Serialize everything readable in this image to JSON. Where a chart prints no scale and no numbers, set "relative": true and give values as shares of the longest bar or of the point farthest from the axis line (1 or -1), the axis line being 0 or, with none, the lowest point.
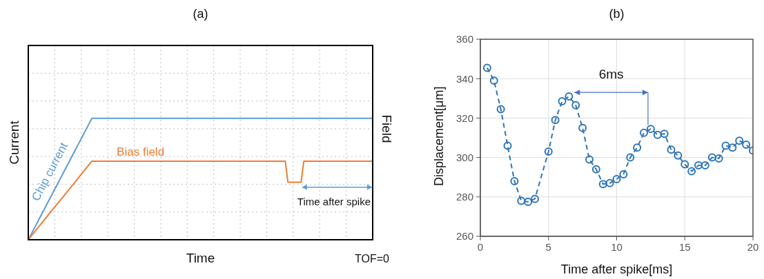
{
  "chart_data": [
    {
      "type": "line",
      "title": "(a)",
      "xlabel": "Time",
      "ylabel": "Current",
      "y2label": "Field",
      "relative": true,
      "grid": true,
      "categories": [
        null,
        null,
        null,
        null,
        null,
        null,
        null,
        null,
        null,
        null,
        null,
        null,
        null,
        null,
        null,
        null,
        null,
        null,
        null,
        null,
        null,
        null,
        null,
        null,
        null,
        null,
        null,
        null,
        null,
        null,
        null,
        null,
        null,
        null,
        null,
        null,
        null,
        null,
        null,
        null,
        null,
        null,
        null,
        null,
        null,
        null,
        null,
        null,
        null,
        null,
        null,
        null,
        null,
        null,
        null,
        null,
        null,
        null,
        null,
        null,
        null,
        null,
        null,
        null,
        null,
        null,
        null,
        null,
        null,
        null,
        null,
        null,
        null,
        null,
        null,
        null,
        null,
        null,
        null,
        null,
        null,
        null,
        null,
        null,
        null,
        null,
        null,
        null,
        null,
        null,
        null,
        null,
        null,
        null,
        null,
        null,
        null,
        null,
        null,
        null,
        null,
        null,
        null,
        null,
        null,
        null,
        null,
        null,
        null,
        null,
        null,
        null,
        null,
        null,
        null,
        null,
        null,
        null,
        null,
        null,
        null,
        null,
        null,
        null,
        null,
        null,
        null,
        null,
        null,
        null,
        null
      ],
      "series": [
        {
          "name": "Chip current",
          "color": "#5b9bd5",
          "values": [
            0,
            0.042,
            0.083,
            0.125,
            0.167,
            0.208,
            0.25,
            0.292,
            0.333,
            0.375,
            0.417,
            0.458,
            0.5,
            0.542,
            0.583,
            0.625,
            0.667,
            0.708,
            0.75,
            0.792,
            0.833,
            0.875,
            0.917,
            0.958,
            1,
            1,
            1,
            1,
            1,
            1,
            1,
            1,
            1,
            1,
            1,
            1,
            1,
            1,
            1,
            1,
            1,
            1,
            1,
            1,
            1,
            1,
            1,
            1,
            1,
            1,
            1,
            1,
            1,
            1,
            1,
            1,
            1,
            1,
            1,
            1,
            1,
            1,
            1,
            1,
            1,
            1,
            1,
            1,
            1,
            1,
            1,
            1,
            1,
            1,
            1,
            1,
            1,
            1,
            1,
            1,
            1,
            1,
            1,
            1,
            1,
            1,
            1,
            1,
            1,
            1,
            1,
            1,
            1,
            1,
            1,
            1,
            1,
            1,
            1,
            1,
            1,
            1,
            1,
            1,
            1,
            1,
            1,
            1,
            1,
            1,
            1,
            1,
            1,
            1,
            1,
            1,
            1,
            1,
            1,
            1,
            1,
            1,
            1,
            1,
            1,
            1,
            1,
            1,
            1,
            1,
            1
          ]
        },
        {
          "name": "Bias field",
          "color": "#ed7d31",
          "values": [
            0,
            0.027,
            0.054,
            0.081,
            0.108,
            0.135,
            0.162,
            0.189,
            0.216,
            0.243,
            0.27,
            0.297,
            0.324,
            0.35,
            0.377,
            0.404,
            0.431,
            0.458,
            0.485,
            0.512,
            0.539,
            0.566,
            0.593,
            0.62,
            0.647,
            0.647,
            0.647,
            0.647,
            0.647,
            0.647,
            0.647,
            0.647,
            0.647,
            0.647,
            0.647,
            0.647,
            0.647,
            0.647,
            0.647,
            0.647,
            0.647,
            0.647,
            0.647,
            0.647,
            0.647,
            0.647,
            0.647,
            0.647,
            0.647,
            0.647,
            0.647,
            0.647,
            0.647,
            0.647,
            0.647,
            0.647,
            0.647,
            0.647,
            0.647,
            0.647,
            0.647,
            0.647,
            0.647,
            0.647,
            0.647,
            0.647,
            0.647,
            0.647,
            0.647,
            0.647,
            0.647,
            0.647,
            0.647,
            0.647,
            0.647,
            0.647,
            0.647,
            0.647,
            0.647,
            0.647,
            0.647,
            0.647,
            0.647,
            0.647,
            0.647,
            0.647,
            0.647,
            0.647,
            0.647,
            0.647,
            0.647,
            0.647,
            0.647,
            0.647,
            0.647,
            0.647,
            0.647,
            0.647,
            0.474,
            0.474,
            0.474,
            0.474,
            0.474,
            0.474,
            0.647,
            0.647,
            0.647,
            0.647,
            0.647,
            0.647,
            0.647,
            0.647,
            0.647,
            0.647,
            0.647,
            0.647,
            0.647,
            0.647,
            0.647,
            0.647,
            0.647,
            0.647,
            0.647,
            0.647,
            0.647,
            0.647,
            0.647,
            0.647,
            0.647,
            0.647,
            0.647
          ]
        }
      ],
      "annotations": [
        "Time after spike",
        "TOF=0"
      ]
    },
    {
      "type": "line",
      "title": "(b)",
      "xlabel": "Time after spike[ms]",
      "ylabel": "Displacement[μm]",
      "xlim": [
        0,
        20
      ],
      "xticks": [
        0,
        5,
        10,
        15,
        20
      ],
      "ylim": [
        260,
        360
      ],
      "yticks": [
        260,
        280,
        300,
        320,
        340,
        360
      ],
      "grid": true,
      "marker": "circle",
      "line_style": "dashed",
      "series": [
        {
          "color": "#2e75b6",
          "x": [
            0.5,
            1,
            1.5,
            2,
            2.5,
            3,
            3.5,
            4,
            5,
            5.5,
            6,
            6.5,
            7,
            7.5,
            8,
            8.5,
            9,
            9.5,
            10,
            10.5,
            11,
            11.5,
            12,
            12.5,
            13,
            13.5,
            14,
            14.5,
            15,
            15.5,
            16,
            16.5,
            17,
            17.5,
            18,
            18.5,
            19,
            19.5,
            20
          ],
          "values": [
            345.5,
            339,
            324.5,
            306,
            288,
            278,
            277.5,
            279,
            303,
            319,
            328.5,
            331,
            326.5,
            315,
            299,
            294,
            286.5,
            287,
            289,
            291.5,
            300,
            305,
            312.5,
            314.5,
            311.5,
            312,
            304,
            301,
            296.5,
            293,
            296,
            296,
            300,
            299.5,
            306,
            305,
            308.5,
            306.5,
            303.5
          ]
        }
      ],
      "annotations": [
        "6ms"
      ]
    }
  ]
}
